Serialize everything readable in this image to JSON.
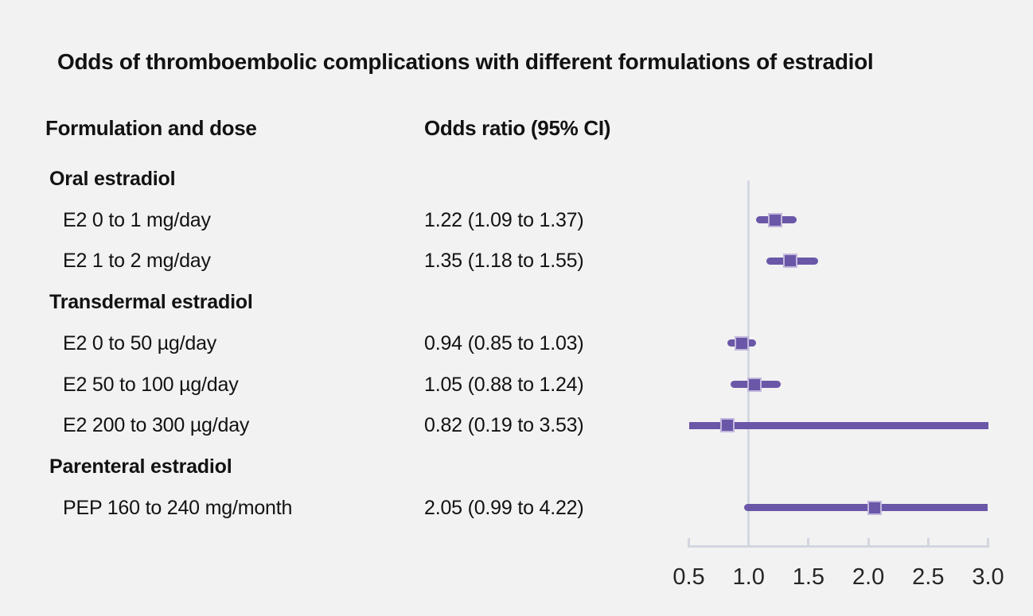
{
  "title": "Odds of thromboembolic complications with different formulations of estradiol",
  "columns": {
    "formulation": "Formulation and dose",
    "odds_ratio": "Odds ratio (95% CI)"
  },
  "rows": [
    {
      "type": "group",
      "label": "Oral estradiol"
    },
    {
      "type": "item",
      "label": "E2 0 to 1 mg/day",
      "or_text": "1.22 (1.09 to 1.37)"
    },
    {
      "type": "item",
      "label": "E2 1 to 2 mg/day",
      "or_text": "1.35 (1.18 to 1.55)"
    },
    {
      "type": "group",
      "label": "Transdermal estradiol"
    },
    {
      "type": "item",
      "label": "E2 0 to 50 µg/day",
      "or_text": "0.94 (0.85 to 1.03)"
    },
    {
      "type": "item",
      "label": "E2 50 to 100 µg/day",
      "or_text": "1.05 (0.88 to 1.24)"
    },
    {
      "type": "item",
      "label": "E2 200 to 300 µg/day",
      "or_text": "0.82 (0.19 to 3.53)"
    },
    {
      "type": "group",
      "label": "Parenteral estradiol"
    },
    {
      "type": "item",
      "label": "PEP 160 to 240 mg/month",
      "or_text": "2.05 (0.99 to 4.22)"
    }
  ],
  "chart_data": {
    "type": "scatter",
    "subtype": "forest-plot",
    "title": "Odds of thromboembolic complications with different formulations of estradiol",
    "xlabel": "Odds ratio (95% CI)",
    "xlim": [
      0.5,
      3.0
    ],
    "x_ticks": [
      "0.5",
      "1.0",
      "1.5",
      "2.0",
      "2.5",
      "3.0"
    ],
    "reference_line_x": 1.0,
    "grid": false,
    "legend": "none",
    "points": [
      {
        "label": "E2 0 to 1 mg/day",
        "or": 1.22,
        "ci_low": 1.09,
        "ci_high": 1.37
      },
      {
        "label": "E2 1 to 2 mg/day",
        "or": 1.35,
        "ci_low": 1.18,
        "ci_high": 1.55
      },
      {
        "label": "E2 0 to 50 µg/day",
        "or": 0.94,
        "ci_low": 0.85,
        "ci_high": 1.03
      },
      {
        "label": "E2 50 to 100 µg/day",
        "or": 1.05,
        "ci_low": 0.88,
        "ci_high": 1.24
      },
      {
        "label": "E2 200 to 300 µg/day",
        "or": 0.82,
        "ci_low": 0.19,
        "ci_high": 3.53
      },
      {
        "label": "PEP 160 to 240 mg/month",
        "or": 2.05,
        "ci_low": 0.99,
        "ci_high": 4.22
      }
    ]
  },
  "colors": {
    "background": "#f2f2f2",
    "text": "#121212",
    "tick_text": "#262626",
    "marker_fill": "#6a57a8",
    "marker_border": "#c2b8dc",
    "ci_line": "#6a57a8",
    "axis_line": "#d3d6e0",
    "reference_line": "#d5d8e2"
  }
}
